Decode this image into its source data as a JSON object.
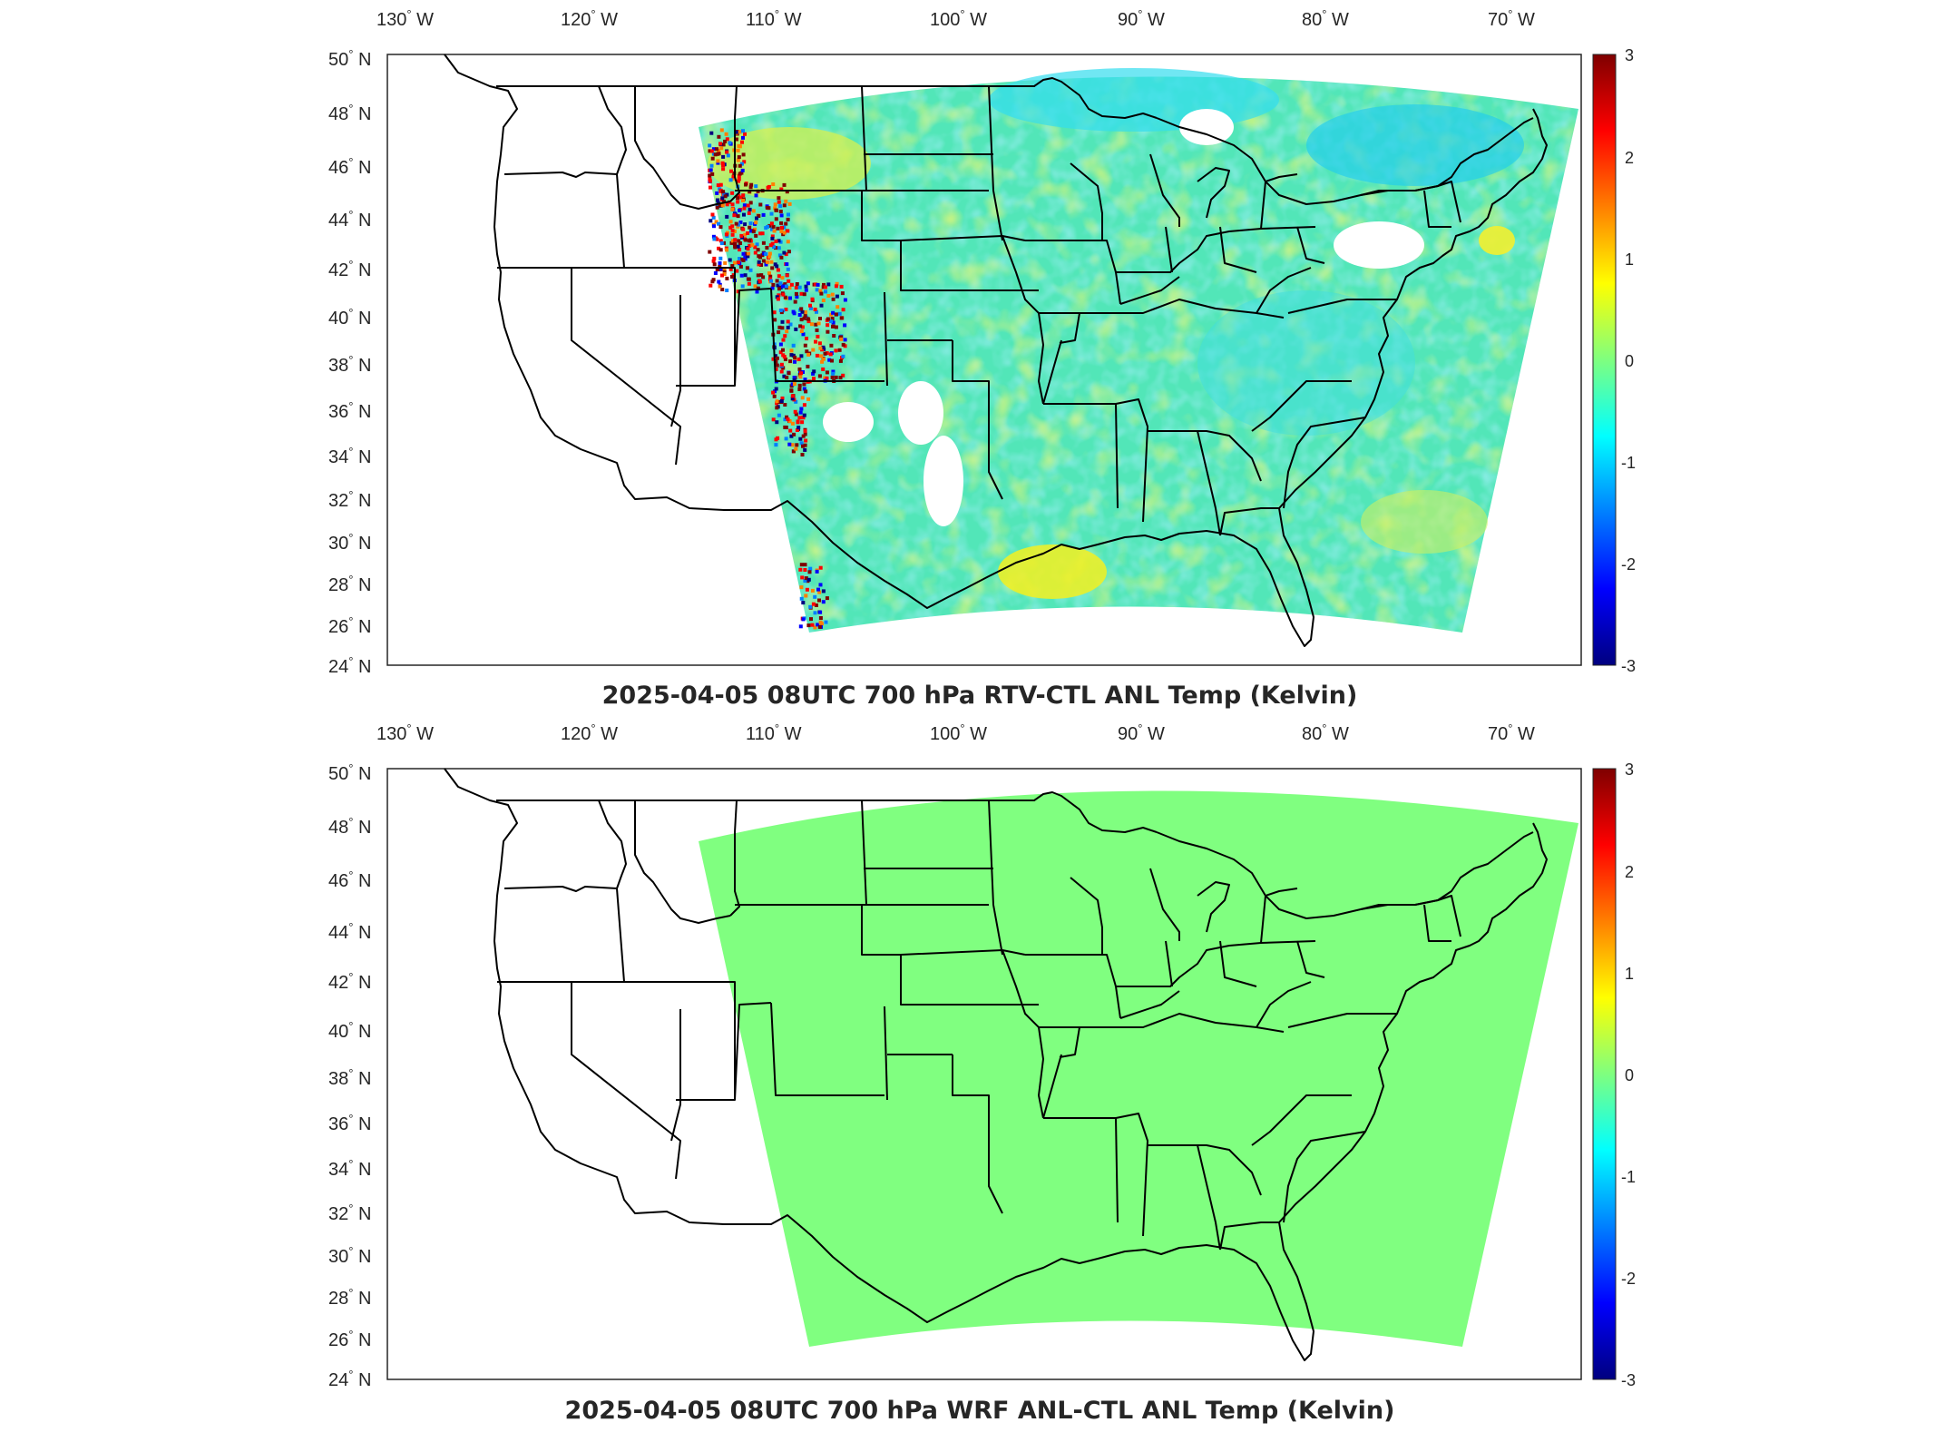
{
  "panels": [
    {
      "id": "rtv",
      "title": "2025-04-05 08UTC 700 hPa RTV-CTL ANL Temp (Kelvin)",
      "field": "noisy-increment",
      "lon_labels": [
        "130",
        "120",
        "110",
        "100",
        "90",
        "80",
        "70"
      ],
      "lon_suffix": "W",
      "lat_labels": [
        "50",
        "48",
        "46",
        "44",
        "42",
        "40",
        "38",
        "36",
        "34",
        "32",
        "30",
        "28",
        "26",
        "24"
      ],
      "lat_suffix": "N",
      "colorbar_ticks": [
        "3",
        "2",
        "1",
        "0",
        "-1",
        "-2",
        "-3"
      ]
    },
    {
      "id": "wrf",
      "title": "2025-04-05 08UTC 700 hPa WRF ANL-CTL ANL Temp (Kelvin)",
      "field": "zero-increment",
      "lon_labels": [
        "130",
        "120",
        "110",
        "100",
        "90",
        "80",
        "70"
      ],
      "lon_suffix": "W",
      "lat_labels": [
        "50",
        "48",
        "46",
        "44",
        "42",
        "40",
        "38",
        "36",
        "34",
        "32",
        "30",
        "28",
        "26",
        "24"
      ],
      "lat_suffix": "N",
      "colorbar_ticks": [
        "3",
        "2",
        "1",
        "0",
        "-1",
        "-2",
        "-3"
      ]
    }
  ],
  "colormap": [
    "#00007f",
    "#0000ff",
    "#007fff",
    "#00ffff",
    "#7fff7f",
    "#ffff00",
    "#ff7f00",
    "#ff0000",
    "#7f0000"
  ],
  "colors": {
    "uniform_field": "#80ff80",
    "borders": "#000000"
  },
  "colorbar_range": [
    -3,
    3
  ]
}
